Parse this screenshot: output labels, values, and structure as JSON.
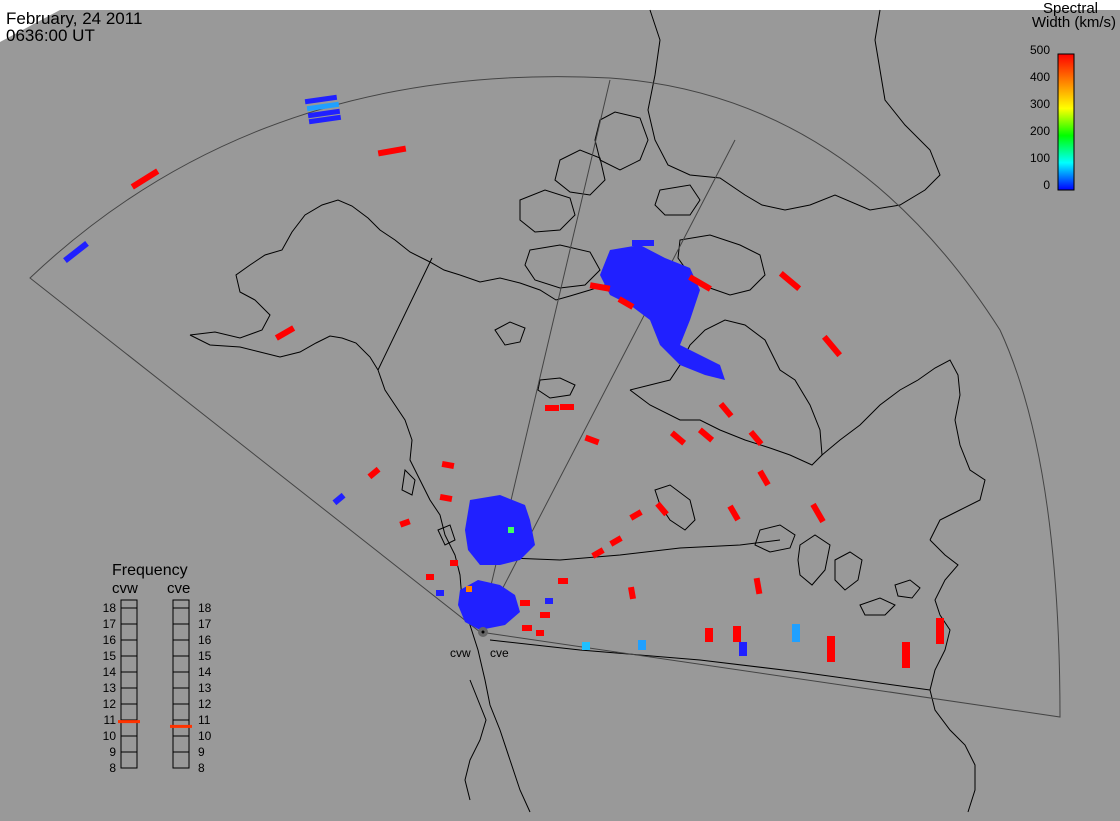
{
  "header": {
    "date": "February, 24 2011",
    "time": "0636:00 UT"
  },
  "colorbar": {
    "title_line1": "Spectral",
    "title_line2": "Width (km/s)",
    "ticks": [
      "500",
      "400",
      "300",
      "200",
      "100",
      "0"
    ],
    "colors": [
      "#ff0000",
      "#ff8000",
      "#ffff00",
      "#00ff00",
      "#00ffff",
      "#0000ff"
    ]
  },
  "frequency_panel": {
    "title": "Frequency",
    "radars": [
      {
        "label": "cvw",
        "value_mhz": 10.9
      },
      {
        "label": "cve",
        "value_mhz": 10.6
      }
    ],
    "scale": [
      "18",
      "17",
      "16",
      "15",
      "14",
      "13",
      "12",
      "11",
      "10",
      "9",
      "8"
    ]
  },
  "radar_sites": {
    "west_label": "cvw",
    "east_label": "cve"
  },
  "style": {
    "background": "#999999",
    "coastline": "#000000",
    "marker_color": "#ff3300"
  }
}
